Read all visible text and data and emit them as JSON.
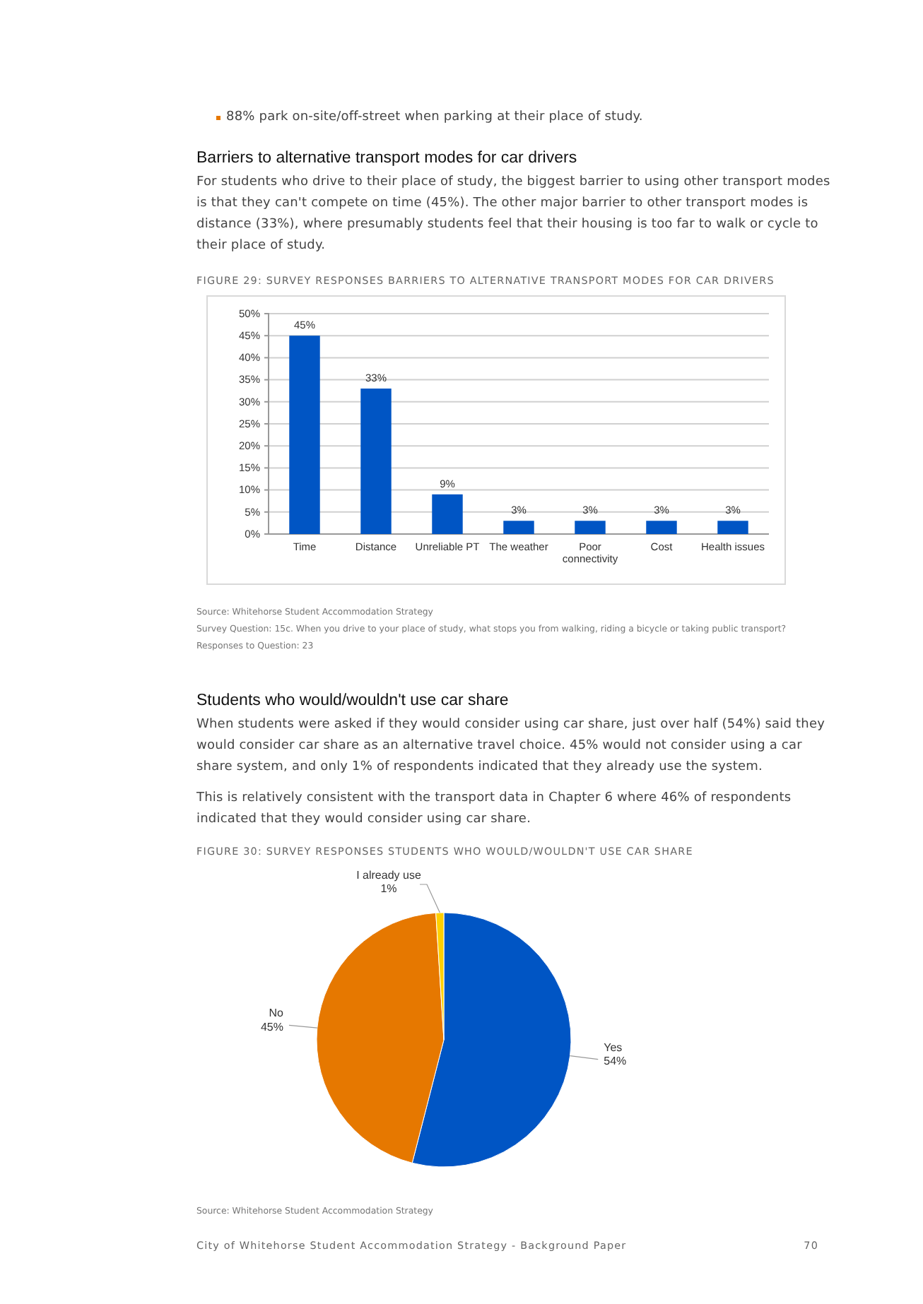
{
  "chart_data": [
    {
      "type": "other",
      "annotations": [
        "88% park on-site/off-street when parking at their place of study."
      ]
    },
    {
      "type": "other",
      "title": "Barriers to alternative transport modes for car drivers",
      "annotations": [
        "For students who drive to their place of study, the biggest barrier to using other transport modes is that they can't compete on time (45%). The other major barrier to other transport modes is distance (33%), where presumably students feel that their housing is too far to walk or cycle to their place of study."
      ]
    },
    {
      "type": "bar",
      "title": "FIGURE 29: SURVEY RESPONSES BARRIERS TO ALTERNATIVE TRANSPORT MODES FOR CAR DRIVERS",
      "categories": [
        "Time",
        "Distance",
        "Unreliable PT",
        "The weather",
        "Poor connectivity",
        "Cost",
        "Health issues"
      ],
      "values": [
        45,
        33,
        9,
        3,
        3,
        3,
        3
      ],
      "value_labels": [
        "45%",
        "33%",
        "9%",
        "3%",
        "3%",
        "3%",
        "3%"
      ],
      "color": "#0055c4",
      "ylim": [
        0,
        50
      ],
      "yticks": [
        {
          "value": 0,
          "label": "0%"
        },
        {
          "value": 5,
          "label": "5%"
        },
        {
          "value": 10,
          "label": "10%"
        },
        {
          "value": 15,
          "label": "15%"
        },
        {
          "value": 20,
          "label": "20%"
        },
        {
          "value": 25,
          "label": "25%"
        },
        {
          "value": 30,
          "label": "30%"
        },
        {
          "value": 35,
          "label": "35%"
        },
        {
          "value": 40,
          "label": "40%"
        },
        {
          "value": 45,
          "label": "45%"
        },
        {
          "value": 50,
          "label": "50%"
        }
      ],
      "grid": "y",
      "annotations": [
        "Source: Whitehorse Student Accommodation Strategy",
        "Survey Question: 15c. When you drive to your place of study, what stops you from walking, riding a bicycle or taking public transport?",
        "Responses to Question: 23"
      ]
    },
    {
      "type": "other",
      "title": "Students who would/wouldn't use car share",
      "annotations": [
        "When students were asked if they would consider using car share, just over half (54%) said they would consider car share as an alternative travel choice. 45% would not consider using a car share system, and only 1% of respondents indicated that they already use the system.",
        "This is relatively consistent with the transport data in Chapter 6 where 46% of respondents indicated that they would consider using car share."
      ]
    },
    {
      "type": "pie",
      "title": "FIGURE 30: SURVEY RESPONSES STUDENTS WHO WOULD/WOULDN'T USE CAR SHARE",
      "categories": [
        "Yes",
        "No",
        "I already use"
      ],
      "values": [
        54,
        45,
        1
      ],
      "value_labels": [
        "54%",
        "45%",
        "1%"
      ],
      "colors": [
        "#0055c4",
        "#e67800",
        "#ffd000"
      ],
      "annotations": [
        "Source: Whitehorse Student Accommodation Strategy"
      ]
    },
    {
      "type": "other",
      "annotations": [
        "City of Whitehorse Student Accommodation Strategy - Background Paper",
        "70"
      ]
    }
  ]
}
